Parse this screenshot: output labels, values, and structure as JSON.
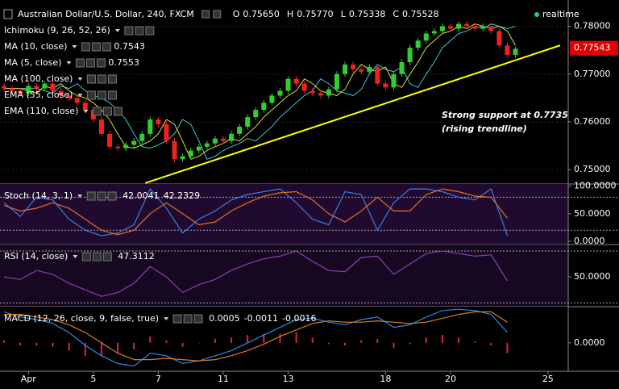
{
  "chart_data": [
    {
      "type": "candlestick",
      "title": "Australian Dollar/U.S. Dollar, 240, FXCM",
      "ohlc": [
        [
          "O",
          "0.75650"
        ],
        [
          "H",
          "0.75770"
        ],
        [
          "L",
          "0.75338"
        ],
        [
          "C",
          "0.75528"
        ]
      ],
      "status": "realtime",
      "categories": [
        null,
        null,
        null,
        "Apr",
        null,
        null,
        null,
        null,
        null,
        null,
        null,
        "5",
        null,
        null,
        null,
        null,
        null,
        null,
        null,
        "7",
        null,
        null,
        null,
        null,
        null,
        null,
        null,
        "11",
        null,
        null,
        null,
        null,
        null,
        null,
        null,
        "13",
        null,
        null,
        null,
        null,
        null,
        null,
        null,
        null,
        null,
        null,
        null,
        "18",
        null,
        null,
        null,
        null,
        null,
        null,
        null,
        "20",
        null,
        null,
        null,
        null,
        null,
        null,
        null,
        null,
        null,
        null,
        null,
        "25",
        null,
        null
      ],
      "open": [
        0.7675,
        0.767,
        0.7665,
        0.766,
        0.7675,
        0.767,
        0.768,
        0.7665,
        0.7655,
        0.765,
        0.764,
        0.7625,
        0.7605,
        0.7575,
        0.7548,
        0.7545,
        0.7552,
        0.756,
        0.7575,
        0.7605,
        0.7595,
        0.756,
        0.7522,
        0.7528,
        0.754,
        0.7548,
        0.7555,
        0.7565,
        0.756,
        0.7575,
        0.759,
        0.761,
        0.7625,
        0.764,
        0.7655,
        0.7665,
        0.769,
        0.768,
        0.7665,
        0.766,
        0.7655,
        0.7668,
        0.77,
        0.772,
        0.771,
        0.7705,
        0.7715,
        0.768,
        0.7672,
        0.77,
        0.7725,
        0.7755,
        0.777,
        0.7785,
        0.779,
        0.78,
        0.7795,
        0.7805,
        0.78,
        0.7795,
        0.78,
        0.779,
        0.776,
        0.774,
        null,
        null,
        null,
        null,
        null,
        null
      ],
      "high": [
        0.7681,
        0.7676,
        0.7671,
        0.7681,
        0.7681,
        0.7686,
        0.7686,
        0.7671,
        0.7661,
        0.7656,
        0.7646,
        0.7631,
        0.7611,
        0.7581,
        0.7554,
        0.7558,
        0.7566,
        0.7581,
        0.7611,
        0.7611,
        0.7601,
        0.7566,
        0.7534,
        0.7546,
        0.7554,
        0.7561,
        0.7571,
        0.7571,
        0.7581,
        0.7596,
        0.7616,
        0.7631,
        0.7646,
        0.7661,
        0.7671,
        0.7696,
        0.7696,
        0.7686,
        0.7671,
        0.7666,
        0.7674,
        0.7706,
        0.7726,
        0.7726,
        0.7716,
        0.7721,
        0.7721,
        0.7686,
        0.7706,
        0.7731,
        0.7761,
        0.7776,
        0.7791,
        0.7796,
        0.7806,
        0.7806,
        0.7811,
        0.7811,
        0.7806,
        0.7806,
        0.7806,
        0.7796,
        0.7766,
        0.7757,
        null,
        null,
        null,
        null,
        null,
        null
      ],
      "low": [
        0.7664,
        0.7659,
        0.7654,
        0.7654,
        0.7664,
        0.7664,
        0.7659,
        0.7649,
        0.7644,
        0.7634,
        0.7619,
        0.7599,
        0.7569,
        0.7542,
        0.7539,
        0.7539,
        0.7546,
        0.7554,
        0.7569,
        0.7589,
        0.7554,
        0.7516,
        0.7516,
        0.7522,
        0.7534,
        0.7542,
        0.7549,
        0.7554,
        0.7554,
        0.7569,
        0.7584,
        0.7604,
        0.7619,
        0.7634,
        0.7649,
        0.7659,
        0.7674,
        0.7659,
        0.7654,
        0.7649,
        0.7649,
        0.7662,
        0.7694,
        0.7704,
        0.7699,
        0.7699,
        0.7674,
        0.7666,
        0.7666,
        0.7694,
        0.7719,
        0.7749,
        0.7764,
        0.7779,
        0.7784,
        0.7789,
        0.7789,
        0.7794,
        0.7789,
        0.7789,
        0.7784,
        0.7754,
        0.7734,
        0.7734,
        null,
        null,
        null,
        null,
        null,
        null
      ],
      "close": [
        0.767,
        0.7665,
        0.766,
        0.7675,
        0.767,
        0.768,
        0.7665,
        0.7655,
        0.765,
        0.764,
        0.7625,
        0.7605,
        0.7575,
        0.7548,
        0.7545,
        0.7552,
        0.756,
        0.7575,
        0.7605,
        0.7595,
        0.756,
        0.7522,
        0.7528,
        0.754,
        0.7548,
        0.7555,
        0.7565,
        0.756,
        0.7575,
        0.759,
        0.761,
        0.7625,
        0.764,
        0.7655,
        0.7665,
        0.769,
        0.768,
        0.7665,
        0.766,
        0.7655,
        0.7668,
        0.77,
        0.772,
        0.771,
        0.7705,
        0.7715,
        0.768,
        0.7672,
        0.77,
        0.7725,
        0.7755,
        0.777,
        0.7785,
        0.779,
        0.78,
        0.7795,
        0.7805,
        0.78,
        0.7795,
        0.78,
        0.779,
        0.776,
        0.774,
        0.7753,
        null,
        null,
        null,
        null,
        null,
        null
      ],
      "up_color": "#33cc33",
      "down_color": "#ee2222",
      "series": [
        {
          "name": "Ichimoku (9, 26, 52, 26)"
        },
        {
          "name": "MA (10, close)",
          "color": "#33cccc",
          "last": 0.7543,
          "values": [
            0.767,
            0.767,
            0.767,
            0.767,
            0.767,
            0.7665,
            0.766,
            0.7675,
            0.767,
            0.768,
            0.7665,
            0.7655,
            0.765,
            0.764,
            0.7625,
            0.7605,
            0.7575,
            0.7548,
            0.7545,
            0.7552,
            0.756,
            0.7575,
            0.7605,
            0.7595,
            0.756,
            0.7522,
            0.7528,
            0.754,
            0.7548,
            0.7555,
            0.7565,
            0.756,
            0.7575,
            0.759,
            0.761,
            0.7625,
            0.764,
            0.7655,
            0.7665,
            0.769,
            0.768,
            0.7665,
            0.766,
            0.7655,
            0.7668,
            0.77,
            0.772,
            0.771,
            0.7705,
            0.7715,
            0.768,
            0.7672,
            0.77,
            0.7725,
            0.7755,
            0.777,
            0.7785,
            0.779,
            0.78,
            0.7795,
            0.7805,
            0.78,
            0.7795,
            0.78,
            null,
            null,
            null,
            null,
            null,
            null
          ]
        },
        {
          "name": "MA (5, close)",
          "color": "#dddd33",
          "last": 0.7553,
          "values": [
            0.767,
            0.767,
            0.767,
            0.7665,
            0.766,
            0.7675,
            0.767,
            0.768,
            0.7665,
            0.7655,
            0.765,
            0.764,
            0.7625,
            0.7605,
            0.7575,
            0.7548,
            0.7545,
            0.7552,
            0.756,
            0.7575,
            0.7605,
            0.7595,
            0.756,
            0.7522,
            0.7528,
            0.754,
            0.7548,
            0.7555,
            0.7565,
            0.756,
            0.7575,
            0.759,
            0.761,
            0.7625,
            0.764,
            0.7655,
            0.7665,
            0.769,
            0.768,
            0.7665,
            0.766,
            0.7655,
            0.7668,
            0.77,
            0.772,
            0.771,
            0.7705,
            0.7715,
            0.768,
            0.7672,
            0.77,
            0.7725,
            0.7755,
            0.777,
            0.7785,
            0.779,
            0.78,
            0.7795,
            0.7805,
            0.78,
            0.7795,
            0.78,
            0.779,
            0.776,
            null,
            null,
            null,
            null,
            null,
            null
          ]
        },
        {
          "name": "MA (100, close)"
        },
        {
          "name": "EMA (55, close)"
        },
        {
          "name": "EMA (110, close)"
        }
      ],
      "trendline": {
        "x": [
          17.4,
          68.5
        ],
        "y": [
          0.7472,
          0.776
        ],
        "color": "#ffff00"
      },
      "annotations": [
        "Strong support at 0.7735",
        "(rising trendline)"
      ],
      "last_price": 0.77543,
      "ylim": [
        0.747,
        0.7855
      ],
      "yticks": [
        {
          "value": 0.78,
          "label": "0.78000"
        },
        {
          "value": 0.77,
          "label": "0.77000"
        },
        {
          "value": 0.76,
          "label": "0.76000"
        },
        {
          "value": 0.75,
          "label": "0.75000"
        }
      ]
    },
    {
      "type": "line",
      "title": "Stoch (14, 3, 1)",
      "background": "#200a30",
      "x": [
        0,
        2,
        4,
        6,
        8,
        10,
        12,
        14,
        16,
        18,
        20,
        22,
        24,
        26,
        28,
        30,
        32,
        34,
        36,
        38,
        40,
        42,
        44,
        46,
        48,
        50,
        52,
        54,
        56,
        58,
        60,
        62
      ],
      "xlim": [
        -0.5,
        69.5
      ],
      "series": [
        {
          "color": "#3b7ddd",
          "last": 42.0041,
          "values": [
            70,
            45,
            80,
            75,
            40,
            20,
            10,
            15,
            30,
            95,
            60,
            15,
            40,
            55,
            75,
            85,
            90,
            95,
            70,
            40,
            30,
            90,
            85,
            20,
            70,
            95,
            95,
            90,
            80,
            75,
            95,
            10
          ]
        },
        {
          "color": "#e0702a",
          "last": 42.2329,
          "values": [
            65,
            55,
            60,
            70,
            60,
            40,
            20,
            12,
            20,
            50,
            70,
            50,
            30,
            35,
            55,
            70,
            82,
            88,
            90,
            75,
            50,
            35,
            55,
            80,
            55,
            55,
            85,
            95,
            90,
            82,
            80,
            42
          ]
        }
      ],
      "levels": [
        80,
        20
      ],
      "ylim": [
        -6,
        104
      ],
      "yticks": [
        {
          "value": 100,
          "label": "100.0000"
        },
        {
          "value": 50,
          "label": "50.0000"
        },
        {
          "value": 0,
          "label": "0.0000"
        }
      ]
    },
    {
      "type": "line",
      "title": "RSI (14, close)",
      "background": "#170822",
      "x": [
        0,
        2,
        4,
        6,
        8,
        10,
        12,
        14,
        16,
        18,
        20,
        22,
        24,
        26,
        28,
        30,
        32,
        34,
        36,
        38,
        40,
        42,
        44,
        46,
        48,
        50,
        52,
        54,
        56,
        58,
        60,
        62
      ],
      "xlim": [
        -0.5,
        69.5
      ],
      "series": [
        {
          "color": "#8a3fb0",
          "last": 47.3112,
          "values": [
            50,
            48,
            55,
            52,
            45,
            40,
            35,
            38,
            45,
            58,
            50,
            38,
            44,
            48,
            55,
            60,
            64,
            66,
            70,
            62,
            55,
            54,
            65,
            66,
            52,
            60,
            68,
            70,
            68,
            66,
            67,
            47
          ]
        }
      ],
      "levels": [
        70,
        30
      ],
      "ylim": [
        27,
        75
      ],
      "yticks": [
        {
          "value": 50,
          "label": "50.0000"
        }
      ]
    },
    {
      "type": "line",
      "title": "MACD (12, 26, close, 9, false, true)",
      "background": "#000000",
      "x": [
        0,
        2,
        4,
        6,
        8,
        10,
        12,
        14,
        16,
        18,
        20,
        22,
        24,
        26,
        28,
        30,
        32,
        34,
        36,
        38,
        40,
        42,
        44,
        46,
        48,
        50,
        52,
        54,
        56,
        58,
        60,
        62
      ],
      "xlim": [
        -0.5,
        69.5
      ],
      "series": [
        {
          "color": "#e0205a",
          "kind": "bar",
          "last": 0.0005,
          "values": [
            0.0002,
            -0.0002,
            -0.0002,
            -0.0003,
            -0.0006,
            -0.001,
            -0.001,
            -0.0008,
            -0.0005,
            0.0005,
            0.0002,
            -0.0003,
            0.0,
            0.0003,
            0.0004,
            0.0006,
            0.0007,
            0.0007,
            0.0008,
            0.0004,
            -0.0001,
            -0.0002,
            0.0002,
            0.0003,
            -0.0004,
            -0.0001,
            0.0004,
            0.0006,
            0.0004,
            0.0001,
            -0.0002,
            -0.0008
          ]
        },
        {
          "color": "#2a8ae0",
          "last": -0.0011,
          "values": [
            0.0024,
            0.002,
            0.0018,
            0.0015,
            0.0008,
            -0.0002,
            -0.001,
            -0.0016,
            -0.0018,
            -0.0008,
            -0.001,
            -0.0016,
            -0.0014,
            -0.001,
            -0.0006,
            0.0,
            0.0006,
            0.0012,
            0.0018,
            0.0019,
            0.0016,
            0.0014,
            0.0018,
            0.002,
            0.0012,
            0.0014,
            0.002,
            0.0025,
            0.0026,
            0.0025,
            0.0022,
            0.0008
          ]
        },
        {
          "color": "#e07a20",
          "last": -0.0016,
          "values": [
            0.0022,
            0.0022,
            0.002,
            0.0018,
            0.0014,
            0.0008,
            0.0,
            -0.0008,
            -0.0013,
            -0.0013,
            -0.0012,
            -0.0013,
            -0.0014,
            -0.0013,
            -0.001,
            -0.0006,
            -0.0001,
            0.0005,
            0.001,
            0.0015,
            0.0017,
            0.0016,
            0.0016,
            0.0017,
            0.0016,
            0.0015,
            0.0016,
            0.0019,
            0.0022,
            0.0024,
            0.0024,
            0.0016
          ]
        }
      ],
      "ylim": [
        -0.0022,
        0.0028
      ],
      "yticks": [
        {
          "value": 0,
          "label": "0.0000"
        }
      ]
    }
  ]
}
